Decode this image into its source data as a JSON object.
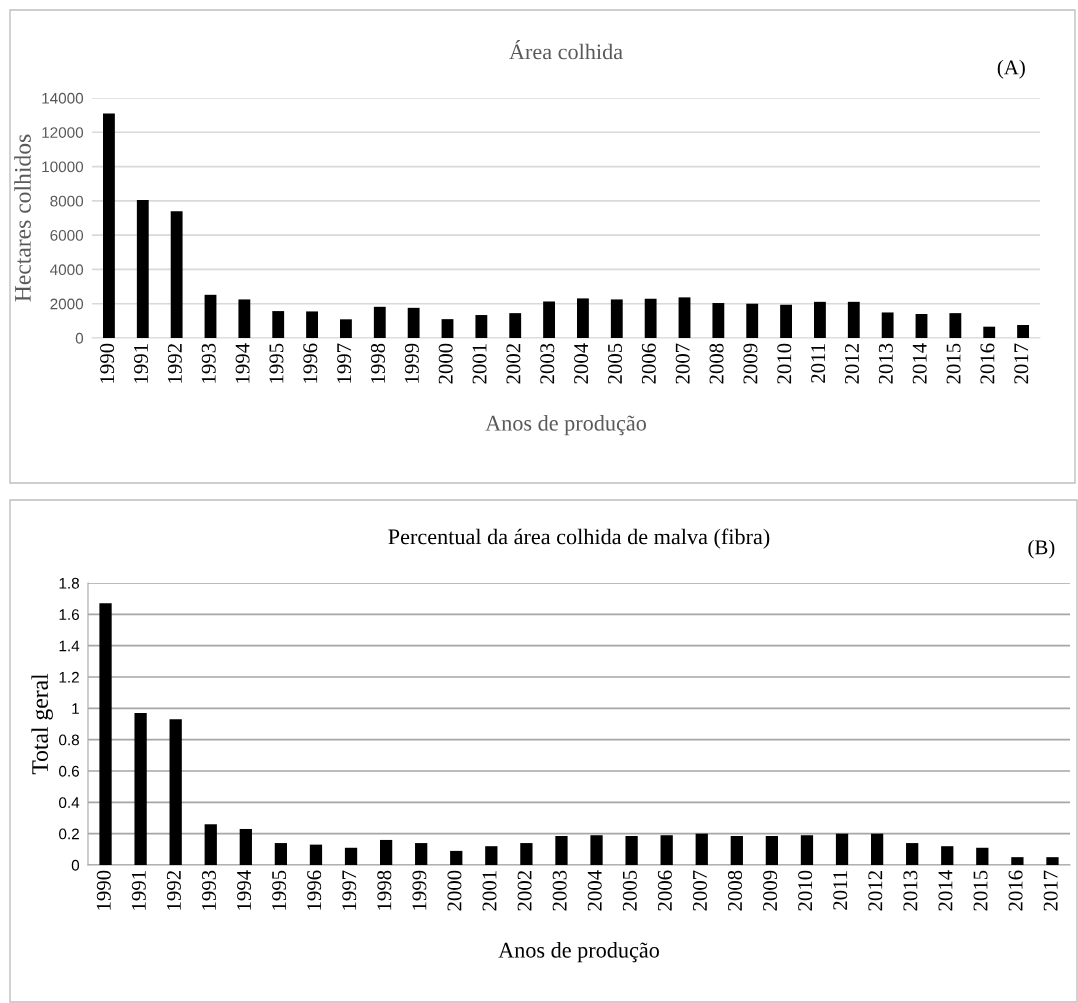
{
  "chart_data": [
    {
      "type": "bar",
      "title": "Área colhida",
      "xlabel": "Anos de produção",
      "ylabel": "Hectares colhidos",
      "annotations": [
        "(A)"
      ],
      "categories": [
        "1990",
        "1991",
        "1992",
        "1993",
        "1994",
        "1995",
        "1996",
        "1997",
        "1998",
        "1999",
        "2000",
        "2001",
        "2002",
        "2003",
        "2004",
        "2005",
        "2006",
        "2007",
        "2008",
        "2009",
        "2010",
        "2011",
        "2012",
        "2013",
        "2014",
        "2015",
        "2016",
        "2017"
      ],
      "values": [
        13100,
        8050,
        7400,
        2520,
        2250,
        1570,
        1550,
        1090,
        1820,
        1760,
        1100,
        1340,
        1450,
        2130,
        2310,
        2250,
        2290,
        2370,
        2040,
        2000,
        1940,
        2110,
        2110,
        1490,
        1400,
        1450,
        660,
        760
      ],
      "color": "#000000",
      "ylim": [
        0,
        14000
      ],
      "yticks": [
        0,
        2000,
        4000,
        6000,
        8000,
        10000,
        12000,
        14000
      ],
      "grid": "y"
    },
    {
      "type": "bar",
      "title": "Percentual da área colhida de malva (fibra)",
      "xlabel": "Anos de produção",
      "ylabel": "Total geral",
      "annotations": [
        "(B)"
      ],
      "categories": [
        "1990",
        "1991",
        "1992",
        "1993",
        "1994",
        "1995",
        "1996",
        "1997",
        "1998",
        "1999",
        "2000",
        "2001",
        "2002",
        "2003",
        "2004",
        "2005",
        "2006",
        "2007",
        "2008",
        "2009",
        "2010",
        "2011",
        "2012",
        "2013",
        "2014",
        "2015",
        "2016",
        "2017"
      ],
      "values": [
        1.67,
        0.97,
        0.93,
        0.26,
        0.23,
        0.14,
        0.13,
        0.11,
        0.16,
        0.14,
        0.09,
        0.12,
        0.14,
        0.185,
        0.19,
        0.185,
        0.19,
        0.2,
        0.185,
        0.185,
        0.19,
        0.2,
        0.2,
        0.14,
        0.12,
        0.11,
        0.05,
        0.05
      ],
      "color": "#000000",
      "ylim": [
        0,
        1.8
      ],
      "yticks": [
        0,
        {
          "value": 0.2,
          "label": "0.2"
        },
        {
          "value": 0.4,
          "label": "0.4"
        },
        {
          "value": 0.6,
          "label": "0.6"
        },
        {
          "value": 0.8,
          "label": "0.8"
        },
        1,
        {
          "value": 1.2,
          "label": "1.2"
        },
        {
          "value": 1.4,
          "label": "1.4"
        },
        {
          "value": 1.6,
          "label": "1.6"
        },
        {
          "value": 1.8,
          "label": "1.8"
        }
      ],
      "grid": "y"
    }
  ]
}
